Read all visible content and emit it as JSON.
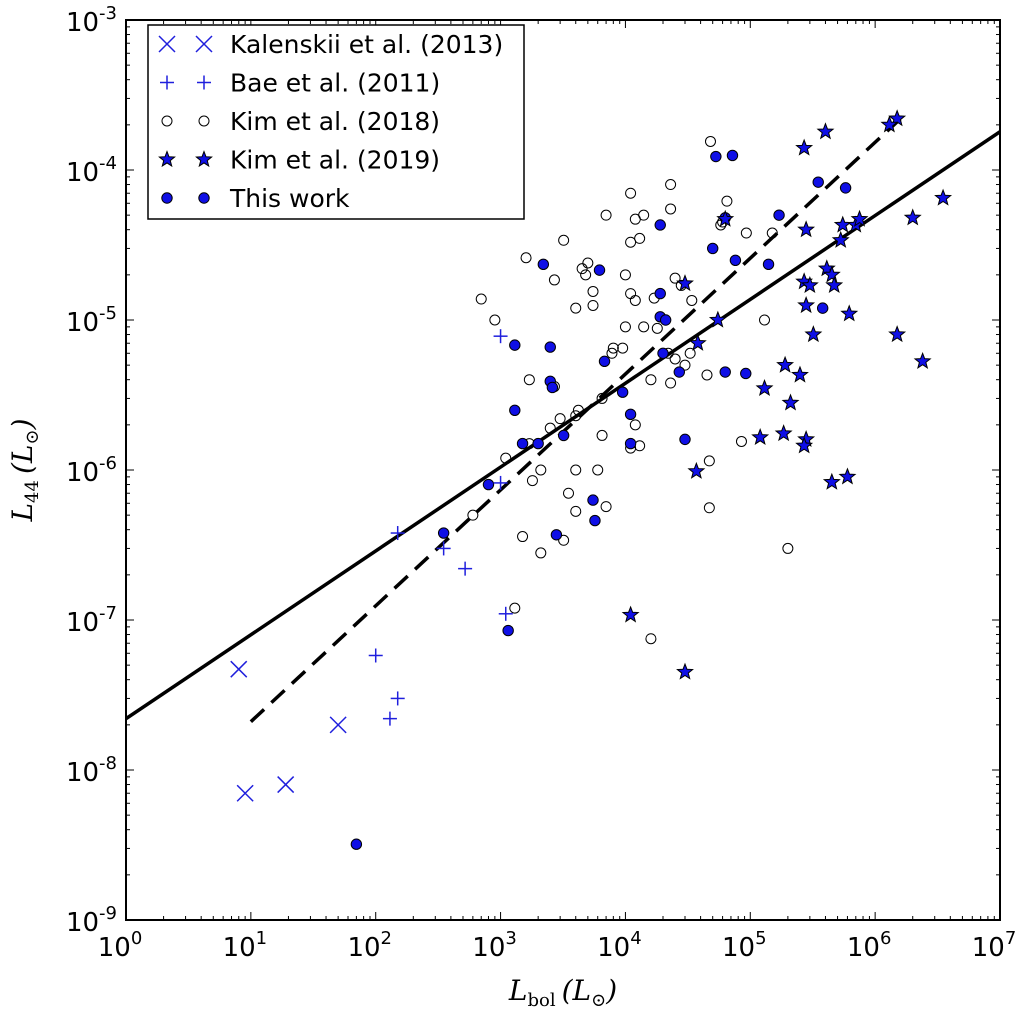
{
  "chart_data": {
    "type": "scatter",
    "xlabel": "L_bol (L_⊙)",
    "ylabel": "L_44 (L_⊙)",
    "xlabel_main": "L",
    "xlabel_sub": "bol",
    "xlabel_unit": "(L",
    "xlabel_unit_close": ")",
    "ylabel_main": "L",
    "ylabel_sub": "44",
    "ylabel_unit": "(L",
    "ylabel_unit_close": ")",
    "sun_symbol": "⊙",
    "xscale": "log",
    "yscale": "log",
    "xlim": [
      1,
      10000000
    ],
    "ylim": [
      1e-09,
      0.001
    ],
    "x_ticks": [
      {
        "base": "10",
        "exp": "0",
        "value": 1
      },
      {
        "base": "10",
        "exp": "1",
        "value": 10
      },
      {
        "base": "10",
        "exp": "2",
        "value": 100
      },
      {
        "base": "10",
        "exp": "3",
        "value": 1000
      },
      {
        "base": "10",
        "exp": "4",
        "value": 10000
      },
      {
        "base": "10",
        "exp": "5",
        "value": 100000
      },
      {
        "base": "10",
        "exp": "6",
        "value": 1000000
      },
      {
        "base": "10",
        "exp": "7",
        "value": 10000000
      }
    ],
    "y_ticks": [
      {
        "base": "10",
        "exp": "-9",
        "value": 1e-09
      },
      {
        "base": "10",
        "exp": "-8",
        "value": 1e-08
      },
      {
        "base": "10",
        "exp": "-7",
        "value": 1e-07
      },
      {
        "base": "10",
        "exp": "-6",
        "value": 1e-06
      },
      {
        "base": "10",
        "exp": "-5",
        "value": 1e-05
      },
      {
        "base": "10",
        "exp": "-4",
        "value": 0.0001
      },
      {
        "base": "10",
        "exp": "-3",
        "value": 0.001
      }
    ],
    "legend_position": "top-left",
    "grid": false,
    "colors": {
      "blue": "#1f1fdd",
      "marker_blue": "#0f0fe6",
      "black": "#000000"
    },
    "series": [
      {
        "name": "Kalenskii et al. (2013)",
        "marker": "x",
        "points": [
          [
            8,
            4.7e-08
          ],
          [
            9,
            7e-09
          ],
          [
            19,
            8e-09
          ],
          [
            50,
            2e-08
          ]
        ]
      },
      {
        "name": "Bae et al. (2011)",
        "marker": "plus",
        "points": [
          [
            1000,
            7.8e-06
          ],
          [
            1000,
            8.2e-07
          ],
          [
            150,
            3.8e-07
          ],
          [
            350,
            3e-07
          ],
          [
            520,
            2.2e-07
          ],
          [
            1100,
            1.1e-07
          ],
          [
            100,
            5.8e-08
          ],
          [
            150,
            3e-08
          ],
          [
            130,
            2.2e-08
          ]
        ]
      },
      {
        "name": "Kim et al. (2018)",
        "marker": "open-circle",
        "points": [
          [
            48000,
            0.000155
          ],
          [
            11000,
            7e-05
          ],
          [
            23000,
            8e-05
          ],
          [
            7000,
            5e-05
          ],
          [
            12000,
            4.7e-05
          ],
          [
            14000,
            5e-05
          ],
          [
            23000,
            5.5e-05
          ],
          [
            11000,
            3.3e-05
          ],
          [
            13000,
            3.5e-05
          ],
          [
            3200,
            3.4e-05
          ],
          [
            1600,
            2.6e-05
          ],
          [
            2700,
            1.85e-05
          ],
          [
            4500,
            2.2e-05
          ],
          [
            5000,
            2.4e-05
          ],
          [
            4800,
            2e-05
          ],
          [
            10000,
            2e-05
          ],
          [
            25000,
            1.9e-05
          ],
          [
            28000,
            1.7e-05
          ],
          [
            700,
            1.38e-05
          ],
          [
            900,
            1e-05
          ],
          [
            4000,
            1.2e-05
          ],
          [
            5500,
            1.25e-05
          ],
          [
            5500,
            1.55e-05
          ],
          [
            11000,
            1.5e-05
          ],
          [
            12000,
            1.35e-05
          ],
          [
            17000,
            1.4e-05
          ],
          [
            10000,
            9e-06
          ],
          [
            14000,
            9e-06
          ],
          [
            18000,
            8.8e-06
          ],
          [
            8000,
            6.5e-06
          ],
          [
            7800,
            6e-06
          ],
          [
            9500,
            6.5e-06
          ],
          [
            22000,
            6e-06
          ],
          [
            25000,
            5.5e-06
          ],
          [
            33000,
            6e-06
          ],
          [
            34000,
            1.35e-05
          ],
          [
            1700,
            4e-06
          ],
          [
            2700,
            3.6e-06
          ],
          [
            4200,
            2.5e-06
          ],
          [
            3000,
            2.2e-06
          ],
          [
            4000,
            2.3e-06
          ],
          [
            6500,
            3e-06
          ],
          [
            12000,
            2e-06
          ],
          [
            16000,
            4e-06
          ],
          [
            23000,
            3.8e-06
          ],
          [
            30000,
            5e-06
          ],
          [
            45000,
            4.3e-06
          ],
          [
            60000,
            4.5e-05
          ],
          [
            65000,
            6.2e-05
          ],
          [
            93000,
            3.8e-05
          ],
          [
            150000,
            3.8e-05
          ],
          [
            58000,
            4.3e-05
          ],
          [
            130000,
            1e-05
          ],
          [
            6500,
            1.7e-06
          ],
          [
            2500,
            1.9e-06
          ],
          [
            1700,
            1.5e-06
          ],
          [
            1100,
            1.2e-06
          ],
          [
            4000,
            1e-06
          ],
          [
            6000,
            1e-06
          ],
          [
            2100,
            1e-06
          ],
          [
            1800,
            8.5e-07
          ],
          [
            3500,
            7e-07
          ],
          [
            4000,
            5.3e-07
          ],
          [
            7000,
            5.7e-07
          ],
          [
            11000,
            1.4e-06
          ],
          [
            13000,
            1.45e-06
          ],
          [
            47000,
            1.15e-06
          ],
          [
            47000,
            5.6e-07
          ],
          [
            600,
            5e-07
          ],
          [
            1500,
            3.6e-07
          ],
          [
            2100,
            2.8e-07
          ],
          [
            3200,
            3.4e-07
          ],
          [
            1300,
            1.2e-07
          ],
          [
            16000,
            7.5e-08
          ],
          [
            85000,
            1.55e-06
          ],
          [
            200000,
            3e-07
          ]
        ]
      },
      {
        "name": "Kim et al. (2019)",
        "marker": "star",
        "points": [
          [
            1500000,
            0.00022
          ],
          [
            1300000,
            0.0002
          ],
          [
            400000,
            0.00018
          ],
          [
            270000,
            0.00014
          ],
          [
            2000000,
            4.8e-05
          ],
          [
            3500000,
            6.5e-05
          ],
          [
            280000,
            4e-05
          ],
          [
            550000,
            4.3e-05
          ],
          [
            700000,
            4.3e-05
          ],
          [
            750000,
            4.7e-05
          ],
          [
            530000,
            3.4e-05
          ],
          [
            30000,
            1.75e-05
          ],
          [
            63000,
            4.7e-05
          ],
          [
            55000,
            1e-05
          ],
          [
            38000,
            7e-06
          ],
          [
            270000,
            1.8e-05
          ],
          [
            300000,
            1.7e-05
          ],
          [
            410000,
            2.2e-05
          ],
          [
            450000,
            2e-05
          ],
          [
            470000,
            1.7e-05
          ],
          [
            280000,
            1.25e-05
          ],
          [
            620000,
            1.1e-05
          ],
          [
            320000,
            8e-06
          ],
          [
            1500000,
            8e-06
          ],
          [
            2400000,
            5.3e-06
          ],
          [
            190000,
            5e-06
          ],
          [
            250000,
            4.3e-06
          ],
          [
            130000,
            3.5e-06
          ],
          [
            210000,
            2.8e-06
          ],
          [
            120000,
            1.65e-06
          ],
          [
            185000,
            1.75e-06
          ],
          [
            280000,
            1.6e-06
          ],
          [
            270000,
            1.45e-06
          ],
          [
            37000,
            9.8e-07
          ],
          [
            450000,
            8.3e-07
          ],
          [
            600000,
            9e-07
          ],
          [
            11000,
            1.08e-07
          ],
          [
            30000,
            4.5e-08
          ]
        ]
      },
      {
        "name": "This work",
        "marker": "filled-circle",
        "points": [
          [
            53000,
            0.000123
          ],
          [
            72000,
            0.000125
          ],
          [
            350000,
            8.3e-05
          ],
          [
            580000,
            7.6e-05
          ],
          [
            19000,
            4.3e-05
          ],
          [
            63000,
            4.8e-05
          ],
          [
            170000,
            5e-05
          ],
          [
            50000,
            3e-05
          ],
          [
            2200,
            2.35e-05
          ],
          [
            6200,
            2.15e-05
          ],
          [
            76000,
            2.5e-05
          ],
          [
            140000,
            2.35e-05
          ],
          [
            19000,
            1.5e-05
          ],
          [
            19000,
            1.05e-05
          ],
          [
            21000,
            1e-05
          ],
          [
            380000,
            1.2e-05
          ],
          [
            1300,
            6.8e-06
          ],
          [
            2500,
            6.6e-06
          ],
          [
            20000,
            6e-06
          ],
          [
            6800,
            5.3e-06
          ],
          [
            27000,
            4.5e-06
          ],
          [
            63000,
            4.5e-06
          ],
          [
            92000,
            4.4e-06
          ],
          [
            2500,
            3.9e-06
          ],
          [
            2600,
            3.55e-06
          ],
          [
            9500,
            3.3e-06
          ],
          [
            1300,
            2.5e-06
          ],
          [
            11000,
            2.35e-06
          ],
          [
            3200,
            1.7e-06
          ],
          [
            1500,
            1.5e-06
          ],
          [
            2000,
            1.5e-06
          ],
          [
            11000,
            1.5e-06
          ],
          [
            30000,
            1.6e-06
          ],
          [
            800,
            8e-07
          ],
          [
            5500,
            6.3e-07
          ],
          [
            5700,
            4.6e-07
          ],
          [
            350,
            3.8e-07
          ],
          [
            2800,
            3.7e-07
          ],
          [
            1150,
            8.5e-08
          ],
          [
            70,
            3.2e-09
          ]
        ]
      }
    ],
    "lines": [
      {
        "style": "solid",
        "points": [
          [
            1,
            2.2e-08
          ],
          [
            10000000,
            0.00018
          ]
        ]
      },
      {
        "style": "dashed",
        "points": [
          [
            10,
            2.1e-08
          ],
          [
            1600000,
            0.00022
          ]
        ]
      }
    ]
  }
}
